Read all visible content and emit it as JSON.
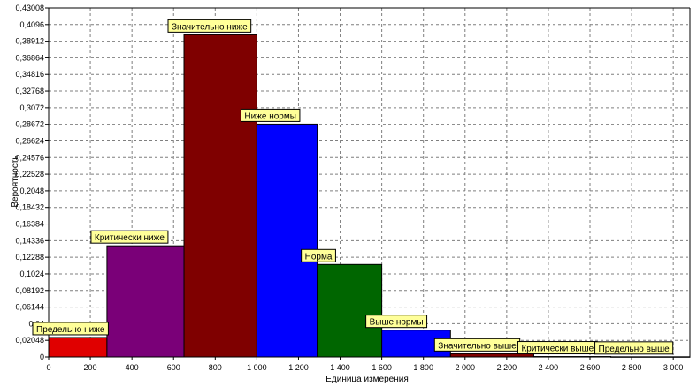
{
  "chart_data": {
    "type": "bar",
    "xlabel": "Единица измерения",
    "ylabel": "Вероятность",
    "xlim": [
      0,
      3080
    ],
    "ylim": [
      0,
      0.43008
    ],
    "xticks": [
      0,
      200,
      400,
      600,
      800,
      1000,
      1200,
      1400,
      1600,
      1800,
      2000,
      2200,
      2400,
      2600,
      2800,
      3000
    ],
    "xtick_labels": [
      "0",
      "200",
      "400",
      "600",
      "800",
      "1 000",
      "1 200",
      "1 400",
      "1 600",
      "1 800",
      "2 000",
      "2 200",
      "2 400",
      "2 600",
      "2 800",
      "3 000"
    ],
    "yticks": [
      0,
      0.02048,
      0.04096,
      0.06144,
      0.08192,
      0.1024,
      0.12288,
      0.14336,
      0.16384,
      0.18432,
      0.2048,
      0.22528,
      0.24576,
      0.26624,
      0.28672,
      0.3072,
      0.32768,
      0.34816,
      0.36864,
      0.38912,
      0.4096,
      0.43008
    ],
    "ytick_labels": [
      "0",
      "0,02048",
      "0,04",
      "0,06144",
      "0,08192",
      "0,1024",
      "0,12288",
      "0,14336",
      "0,16384",
      "0,18432",
      "0,2048",
      "0,22528",
      "0,24576",
      "0,26624",
      "0,28672",
      "0,3072",
      "0,32768",
      "0,34816",
      "0,36864",
      "0,38912",
      "0,4096",
      "0,43008"
    ],
    "grid": true,
    "bars": [
      {
        "label": "Предельно ниже",
        "x_start": 0,
        "x_end": 280,
        "value": 0.024,
        "color": "#e00000"
      },
      {
        "label": "Критически ниже",
        "x_start": 280,
        "x_end": 650,
        "value": 0.137,
        "color": "#7a0078"
      },
      {
        "label": "Значительно ниже",
        "x_start": 650,
        "x_end": 1000,
        "value": 0.397,
        "color": "#7f0000"
      },
      {
        "label": "Ниже нормы",
        "x_start": 1000,
        "x_end": 1290,
        "value": 0.287,
        "color": "#0000ff"
      },
      {
        "label": "Норма",
        "x_start": 1290,
        "x_end": 1600,
        "value": 0.114,
        "color": "#006600"
      },
      {
        "label": "Выше нормы",
        "x_start": 1600,
        "x_end": 1930,
        "value": 0.033,
        "color": "#0000ff"
      },
      {
        "label": "Значительно выше",
        "x_start": 1930,
        "x_end": 2330,
        "value": 0.004,
        "color": "#7f0000"
      },
      {
        "label": "Критически выше",
        "x_start": 2330,
        "x_end": 2700,
        "value": 0.0005,
        "color": "#7a0078"
      },
      {
        "label": "Предельно выше",
        "x_start": 2700,
        "x_end": 3080,
        "value": 0.0002,
        "color": "#e00000"
      }
    ]
  }
}
